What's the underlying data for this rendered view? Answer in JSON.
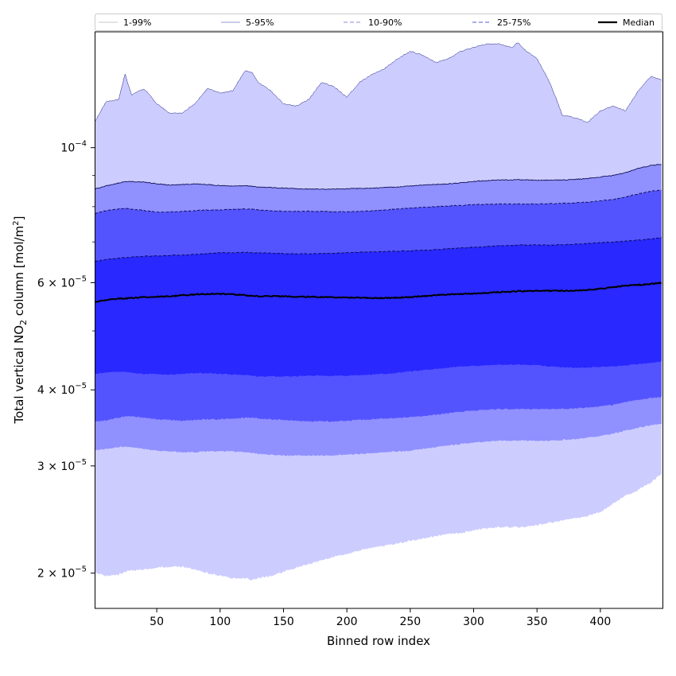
{
  "chart_data": {
    "type": "area",
    "xlabel": "Binned row index",
    "ylabel_parts": {
      "prefix": "Total vertical NO",
      "sub": "2",
      "suffix": " column [mol/m",
      "sup": "2",
      "end": "]"
    },
    "xlim": [
      1,
      449
    ],
    "ylim": [
      1.75e-05,
      0.000155
    ],
    "yscale": "log",
    "x_ticks": [
      50,
      100,
      150,
      200,
      250,
      300,
      350,
      400
    ],
    "x_tick_labels": [
      "50",
      "100",
      "150",
      "200",
      "250",
      "300",
      "350",
      "400"
    ],
    "y_ticks": [
      {
        "value": 0.0001,
        "mant": "",
        "base": "10",
        "exp": "−4"
      },
      {
        "value": 6e-05,
        "mant": "6 × ",
        "base": "10",
        "exp": "−5"
      },
      {
        "value": 4e-05,
        "mant": "4 × ",
        "base": "10",
        "exp": "−5"
      },
      {
        "value": 3e-05,
        "mant": "3 × ",
        "base": "10",
        "exp": "−5"
      },
      {
        "value": 2e-05,
        "mant": "2 × ",
        "base": "10",
        "exp": "−5"
      }
    ],
    "y_minor_ticks": [
      9e-05,
      8e-05,
      7e-05,
      5e-05
    ],
    "legend": {
      "placement": "top, above plot",
      "entries": [
        {
          "label": "1-99%",
          "style": "thin",
          "color": "#c8c8c8"
        },
        {
          "label": "5-95%",
          "style": "thin",
          "color": "#9a9ad0"
        },
        {
          "label": "10-90%",
          "style": "dashed",
          "color": "#8a8ae8"
        },
        {
          "label": "25-75%",
          "style": "dashed",
          "color": "#5a5ad8"
        },
        {
          "label": "Median",
          "style": "solid",
          "color": "#000000"
        }
      ]
    },
    "band_colors": {
      "1-99%": "#ccccff",
      "5-95%": "#9090ff",
      "10-90%": "#5454ff",
      "25-75%": "#2828ff",
      "median_line": "#000000"
    },
    "x": [
      1,
      10,
      20,
      25,
      30,
      40,
      50,
      60,
      70,
      80,
      90,
      100,
      110,
      120,
      125,
      130,
      140,
      150,
      160,
      170,
      180,
      190,
      200,
      210,
      220,
      230,
      240,
      250,
      260,
      270,
      280,
      290,
      300,
      310,
      320,
      330,
      335,
      340,
      350,
      360,
      370,
      380,
      390,
      400,
      410,
      420,
      430,
      440,
      449
    ],
    "series": [
      {
        "name": "1-99%",
        "role": "upper",
        "values": [
          0.00011,
          0.000119,
          0.00012,
          0.000132,
          0.000122,
          0.000125,
          0.000118,
          0.000114,
          0.000114,
          0.000118,
          0.000125,
          0.000123,
          0.000124,
          0.000134,
          0.000133,
          0.000128,
          0.000124,
          0.000118,
          0.000117,
          0.00012,
          0.000128,
          0.000126,
          0.000121,
          0.000128,
          0.000132,
          0.000135,
          0.00014,
          0.000144,
          0.000142,
          0.000138,
          0.00014,
          0.000144,
          0.000146,
          0.000148,
          0.000148,
          0.000146,
          0.000149,
          0.000145,
          0.00014,
          0.000128,
          0.000113,
          0.000112,
          0.00011,
          0.000115,
          0.000117,
          0.000115,
          0.000124,
          0.000131,
          0.000129
        ]
      },
      {
        "name": "5-95%",
        "role": "upper",
        "values": [
          8.55e-05,
          8.65e-05,
          8.75e-05,
          8.8e-05,
          8.8e-05,
          8.78e-05,
          8.72e-05,
          8.68e-05,
          8.7e-05,
          8.72e-05,
          8.7e-05,
          8.66e-05,
          8.65e-05,
          8.66e-05,
          8.64e-05,
          8.62e-05,
          8.6e-05,
          8.58e-05,
          8.56e-05,
          8.55e-05,
          8.55e-05,
          8.55e-05,
          8.56e-05,
          8.57e-05,
          8.58e-05,
          8.6e-05,
          8.62e-05,
          8.65e-05,
          8.68e-05,
          8.7e-05,
          8.72e-05,
          8.75e-05,
          8.8e-05,
          8.83e-05,
          8.85e-05,
          8.85e-05,
          8.86e-05,
          8.85e-05,
          8.84e-05,
          8.84e-05,
          8.85e-05,
          8.87e-05,
          8.9e-05,
          8.95e-05,
          9e-05,
          9.1e-05,
          9.25e-05,
          9.35e-05,
          9.4e-05
        ]
      },
      {
        "name": "10-90%",
        "role": "upper",
        "values": [
          7.8e-05,
          7.88e-05,
          7.93e-05,
          7.95e-05,
          7.93e-05,
          7.88e-05,
          7.84e-05,
          7.84e-05,
          7.86e-05,
          7.88e-05,
          7.9e-05,
          7.9e-05,
          7.92e-05,
          7.93e-05,
          7.92e-05,
          7.9e-05,
          7.88e-05,
          7.86e-05,
          7.86e-05,
          7.86e-05,
          7.86e-05,
          7.85e-05,
          7.85e-05,
          7.86e-05,
          7.88e-05,
          7.9e-05,
          7.93e-05,
          7.96e-05,
          7.98e-05,
          8e-05,
          8.02e-05,
          8.04e-05,
          8.06e-05,
          8.07e-05,
          8.08e-05,
          8.08e-05,
          8.08e-05,
          8.08e-05,
          8.08e-05,
          8.09e-05,
          8.1e-05,
          8.12e-05,
          8.14e-05,
          8.18e-05,
          8.22e-05,
          8.3e-05,
          8.4e-05,
          8.48e-05,
          8.52e-05
        ]
      },
      {
        "name": "25-75%",
        "role": "upper",
        "values": [
          6.5e-05,
          6.55e-05,
          6.58e-05,
          6.6e-05,
          6.61e-05,
          6.63e-05,
          6.64e-05,
          6.65e-05,
          6.66e-05,
          6.68e-05,
          6.7e-05,
          6.72e-05,
          6.72e-05,
          6.73e-05,
          6.72e-05,
          6.72e-05,
          6.71e-05,
          6.7e-05,
          6.69e-05,
          6.69e-05,
          6.7e-05,
          6.71e-05,
          6.72e-05,
          6.73e-05,
          6.74e-05,
          6.75e-05,
          6.76e-05,
          6.77e-05,
          6.78e-05,
          6.8e-05,
          6.82e-05,
          6.84e-05,
          6.86e-05,
          6.88e-05,
          6.9e-05,
          6.91e-05,
          6.92e-05,
          6.92e-05,
          6.92e-05,
          6.92e-05,
          6.93e-05,
          6.94e-05,
          6.96e-05,
          6.98e-05,
          7e-05,
          7.02e-05,
          7.05e-05,
          7.08e-05,
          7.12e-05
        ]
      },
      {
        "name": "Median",
        "role": "line",
        "values": [
          5.58e-05,
          5.62e-05,
          5.65e-05,
          5.65e-05,
          5.66e-05,
          5.68e-05,
          5.69e-05,
          5.7e-05,
          5.72e-05,
          5.74e-05,
          5.75e-05,
          5.75e-05,
          5.74e-05,
          5.72e-05,
          5.71e-05,
          5.7e-05,
          5.7e-05,
          5.7e-05,
          5.69e-05,
          5.69e-05,
          5.68e-05,
          5.68e-05,
          5.67e-05,
          5.67e-05,
          5.66e-05,
          5.66e-05,
          5.67e-05,
          5.68e-05,
          5.7e-05,
          5.72e-05,
          5.74e-05,
          5.75e-05,
          5.76e-05,
          5.77e-05,
          5.79e-05,
          5.8e-05,
          5.81e-05,
          5.81e-05,
          5.82e-05,
          5.82e-05,
          5.82e-05,
          5.82e-05,
          5.84e-05,
          5.86e-05,
          5.9e-05,
          5.93e-05,
          5.95e-05,
          5.97e-05,
          6e-05
        ]
      },
      {
        "name": "25-75%",
        "role": "lower",
        "values": [
          4.25e-05,
          4.27e-05,
          4.28e-05,
          4.28e-05,
          4.27e-05,
          4.25e-05,
          4.24e-05,
          4.24e-05,
          4.25e-05,
          4.26e-05,
          4.26e-05,
          4.25e-05,
          4.24e-05,
          4.23e-05,
          4.22e-05,
          4.21e-05,
          4.21e-05,
          4.21e-05,
          4.21e-05,
          4.22e-05,
          4.22e-05,
          4.22e-05,
          4.22e-05,
          4.23e-05,
          4.24e-05,
          4.25e-05,
          4.27e-05,
          4.29e-05,
          4.31e-05,
          4.33e-05,
          4.35e-05,
          4.37e-05,
          4.38e-05,
          4.39e-05,
          4.4e-05,
          4.4e-05,
          4.4e-05,
          4.4e-05,
          4.39e-05,
          4.37e-05,
          4.36e-05,
          4.35e-05,
          4.35e-05,
          4.36e-05,
          4.37e-05,
          4.39e-05,
          4.41e-05,
          4.43e-05,
          4.45e-05
        ]
      },
      {
        "name": "10-90%",
        "role": "lower",
        "values": [
          3.55e-05,
          3.56e-05,
          3.6e-05,
          3.62e-05,
          3.62e-05,
          3.6e-05,
          3.58e-05,
          3.57e-05,
          3.56e-05,
          3.57e-05,
          3.58e-05,
          3.58e-05,
          3.59e-05,
          3.6e-05,
          3.6e-05,
          3.59e-05,
          3.58e-05,
          3.57e-05,
          3.56e-05,
          3.55e-05,
          3.55e-05,
          3.55e-05,
          3.56e-05,
          3.57e-05,
          3.58e-05,
          3.59e-05,
          3.6e-05,
          3.61e-05,
          3.62e-05,
          3.64e-05,
          3.66e-05,
          3.68e-05,
          3.7e-05,
          3.71e-05,
          3.72e-05,
          3.72e-05,
          3.72e-05,
          3.72e-05,
          3.72e-05,
          3.72e-05,
          3.72e-05,
          3.73e-05,
          3.74e-05,
          3.76e-05,
          3.78e-05,
          3.82e-05,
          3.85e-05,
          3.88e-05,
          3.9e-05
        ]
      },
      {
        "name": "5-95%",
        "role": "lower",
        "values": [
          3.18e-05,
          3.2e-05,
          3.22e-05,
          3.23e-05,
          3.22e-05,
          3.2e-05,
          3.18e-05,
          3.17e-05,
          3.16e-05,
          3.16e-05,
          3.17e-05,
          3.17e-05,
          3.17e-05,
          3.16e-05,
          3.15e-05,
          3.14e-05,
          3.13e-05,
          3.12e-05,
          3.12e-05,
          3.12e-05,
          3.12e-05,
          3.12e-05,
          3.13e-05,
          3.14e-05,
          3.15e-05,
          3.16e-05,
          3.17e-05,
          3.18e-05,
          3.2e-05,
          3.22e-05,
          3.24e-05,
          3.26e-05,
          3.28e-05,
          3.29e-05,
          3.3e-05,
          3.3e-05,
          3.3e-05,
          3.3e-05,
          3.3e-05,
          3.3e-05,
          3.31e-05,
          3.32e-05,
          3.34e-05,
          3.36e-05,
          3.39e-05,
          3.43e-05,
          3.47e-05,
          3.5e-05,
          3.52e-05
        ]
      },
      {
        "name": "1-99%",
        "role": "lower",
        "values": [
          2e-05,
          1.98e-05,
          1.99e-05,
          2.01e-05,
          2.02e-05,
          2.03e-05,
          2.04e-05,
          2.05e-05,
          2.05e-05,
          2.03e-05,
          2e-05,
          1.98e-05,
          1.96e-05,
          1.96e-05,
          1.95e-05,
          1.96e-05,
          1.98e-05,
          2.01e-05,
          2.04e-05,
          2.07e-05,
          2.1e-05,
          2.13e-05,
          2.15e-05,
          2.18e-05,
          2.2e-05,
          2.22e-05,
          2.24e-05,
          2.26e-05,
          2.28e-05,
          2.3e-05,
          2.32e-05,
          2.33e-05,
          2.35e-05,
          2.37e-05,
          2.38e-05,
          2.38e-05,
          2.38e-05,
          2.38e-05,
          2.4e-05,
          2.42e-05,
          2.44e-05,
          2.46e-05,
          2.48e-05,
          2.52e-05,
          2.6e-05,
          2.68e-05,
          2.74e-05,
          2.82e-05,
          2.92e-05
        ]
      }
    ]
  }
}
